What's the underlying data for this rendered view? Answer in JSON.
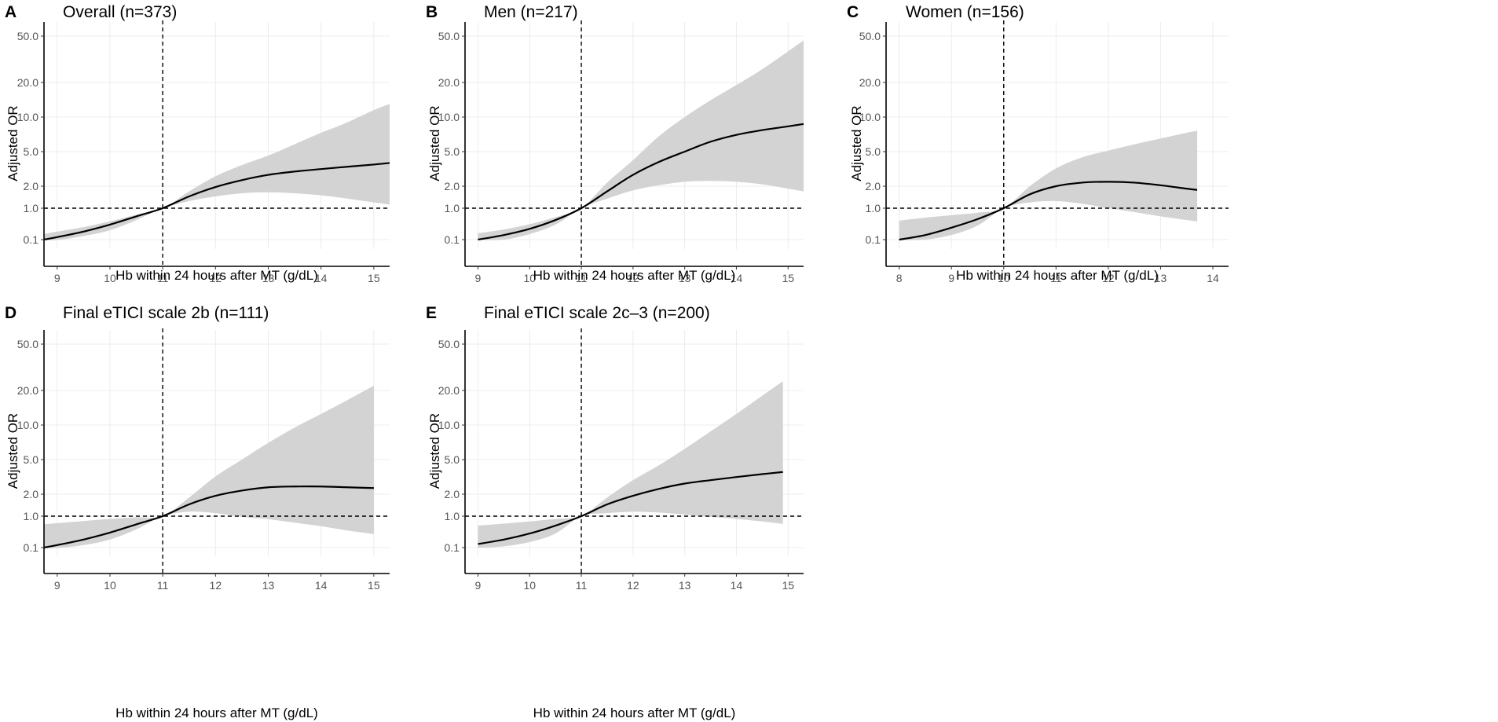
{
  "figure": {
    "y_axis_label": "Adjusted OR",
    "x_axis_label": "Hb within 24 hours after MT (g/dL)",
    "y_tick_labels": [
      "0.1",
      "1.0",
      "2.0",
      "5.0",
      "10.0",
      "20.0",
      "50.0"
    ]
  },
  "chart_data": [
    {
      "type": "line",
      "panel": "A",
      "title": "Overall (n=373)",
      "xlabel": "Hb within 24 hours after MT (g/dL)",
      "ylabel": "Adjusted OR",
      "xlim": [
        8.75,
        15.3
      ],
      "x_ticks": [
        9,
        10,
        11,
        12,
        13,
        14,
        15
      ],
      "ref_x": 11,
      "ref_y": 1.0,
      "curve": {
        "x": [
          8.75,
          9,
          9.5,
          10,
          10.5,
          11,
          11.5,
          12,
          12.5,
          13,
          13.5,
          14,
          14.5,
          15,
          15.3
        ],
        "y": [
          0.1,
          0.12,
          0.18,
          0.3,
          0.55,
          1.0,
          1.45,
          1.95,
          2.35,
          2.7,
          2.95,
          3.15,
          3.35,
          3.55,
          3.7
        ]
      },
      "ci_upper": {
        "x": [
          8.75,
          9,
          9.5,
          10,
          10.5,
          11,
          11.5,
          12,
          12.5,
          13,
          13.5,
          14,
          14.5,
          15,
          15.3
        ],
        "y": [
          0.15,
          0.18,
          0.25,
          0.38,
          0.62,
          1.0,
          1.7,
          2.6,
          3.5,
          4.5,
          5.8,
          7.3,
          9.0,
          11.5,
          13.0
        ]
      },
      "ci_lower": {
        "x": [
          8.75,
          9,
          9.5,
          10,
          10.5,
          11,
          11.5,
          12,
          12.5,
          13,
          13.5,
          14,
          14.5,
          15,
          15.3
        ],
        "y": [
          0.085,
          0.09,
          0.13,
          0.2,
          0.42,
          1.0,
          1.25,
          1.45,
          1.6,
          1.65,
          1.6,
          1.5,
          1.35,
          1.2,
          1.12
        ]
      }
    },
    {
      "type": "line",
      "panel": "B",
      "title": "Men (n=217)",
      "xlabel": "Hb within 24 hours after MT (g/dL)",
      "ylabel": "Adjusted OR",
      "xlim": [
        8.75,
        15.3
      ],
      "x_ticks": [
        9,
        10,
        11,
        12,
        13,
        14,
        15
      ],
      "ref_x": 11,
      "ref_y": 1.0,
      "curve": {
        "x": [
          9,
          9.5,
          10,
          10.5,
          11,
          11.5,
          12,
          12.5,
          13,
          13.5,
          14,
          14.5,
          15,
          15.3
        ],
        "y": [
          0.1,
          0.14,
          0.22,
          0.42,
          1.0,
          1.7,
          2.7,
          3.8,
          5.0,
          6.1,
          7.0,
          7.7,
          8.3,
          8.7
        ]
      },
      "ci_upper": {
        "x": [
          9,
          9.5,
          10,
          10.5,
          11,
          11.5,
          12,
          12.5,
          13,
          13.5,
          14,
          14.5,
          15,
          15.3
        ],
        "y": [
          0.16,
          0.21,
          0.31,
          0.52,
          1.0,
          2.2,
          4.0,
          6.8,
          10.0,
          14.0,
          19.0,
          26.0,
          37.0,
          46.0
        ]
      },
      "ci_lower": {
        "x": [
          9,
          9.5,
          10,
          10.5,
          11,
          11.5,
          12,
          12.5,
          13,
          13.5,
          14,
          14.5,
          15,
          15.3
        ],
        "y": [
          0.085,
          0.1,
          0.15,
          0.3,
          1.0,
          1.35,
          1.75,
          2.05,
          2.25,
          2.3,
          2.25,
          2.1,
          1.85,
          1.7
        ]
      }
    },
    {
      "type": "line",
      "panel": "C",
      "title": "Women (n=156)",
      "xlabel": "Hb within 24 hours after MT (g/dL)",
      "ylabel": "Adjusted OR",
      "xlim": [
        7.75,
        14.3
      ],
      "x_ticks": [
        8,
        9,
        10,
        11,
        12,
        13,
        14
      ],
      "ref_x": 10,
      "ref_y": 1.0,
      "curve": {
        "x": [
          8,
          8.5,
          9,
          9.5,
          10,
          10.5,
          11,
          11.5,
          12,
          12.5,
          13,
          13.5,
          13.7
        ],
        "y": [
          0.1,
          0.14,
          0.24,
          0.45,
          1.0,
          1.55,
          2.0,
          2.2,
          2.25,
          2.2,
          2.05,
          1.85,
          1.78
        ]
      },
      "ci_upper": {
        "x": [
          8,
          8.5,
          9,
          9.5,
          10,
          10.5,
          11,
          11.5,
          12,
          12.5,
          13,
          13.5,
          13.7
        ],
        "y": [
          0.4,
          0.5,
          0.6,
          0.72,
          1.0,
          2.0,
          3.2,
          4.3,
          5.1,
          5.8,
          6.5,
          7.3,
          7.6
        ]
      },
      "ci_lower": {
        "x": [
          8,
          8.5,
          9,
          9.5,
          10,
          10.5,
          11,
          11.5,
          12,
          12.5,
          13,
          13.5,
          13.7
        ],
        "y": [
          0.085,
          0.1,
          0.14,
          0.28,
          1.0,
          1.2,
          1.25,
          1.15,
          1.0,
          0.75,
          0.55,
          0.42,
          0.38
        ]
      }
    },
    {
      "type": "line",
      "panel": "D",
      "title": "Final eTICI scale 2b (n=111)",
      "xlabel": "Hb within 24 hours after MT (g/dL)",
      "ylabel": "Adjusted OR",
      "xlim": [
        8.75,
        15.3
      ],
      "x_ticks": [
        9,
        10,
        11,
        12,
        13,
        14,
        15
      ],
      "ref_x": 11,
      "ref_y": 1.0,
      "curve": {
        "x": [
          8.75,
          9,
          9.5,
          10,
          10.5,
          11,
          11.5,
          12,
          12.5,
          13,
          13.5,
          14,
          14.5,
          15
        ],
        "y": [
          0.1,
          0.12,
          0.18,
          0.3,
          0.55,
          1.0,
          1.45,
          1.9,
          2.2,
          2.4,
          2.45,
          2.45,
          2.4,
          2.35
        ]
      },
      "ci_upper": {
        "x": [
          8.75,
          9,
          9.5,
          10,
          10.5,
          11,
          11.5,
          12,
          12.5,
          13,
          13.5,
          14,
          14.5,
          15
        ],
        "y": [
          0.55,
          0.6,
          0.7,
          0.82,
          0.92,
          1.0,
          1.8,
          3.2,
          5.0,
          7.0,
          9.5,
          12.5,
          16.5,
          22.0
        ]
      },
      "ci_lower": {
        "x": [
          8.75,
          9,
          9.5,
          10,
          10.5,
          11,
          11.5,
          12,
          12.5,
          13,
          13.5,
          14,
          14.5,
          15
        ],
        "y": [
          0.085,
          0.09,
          0.12,
          0.18,
          0.38,
          1.0,
          1.15,
          1.1,
          0.95,
          0.8,
          0.62,
          0.48,
          0.35,
          0.27
        ]
      }
    },
    {
      "type": "line",
      "panel": "E",
      "title": "Final eTICI scale 2c–3 (n=200)",
      "xlabel": "Hb within 24 hours after MT (g/dL)",
      "ylabel": "Adjusted OR",
      "xlim": [
        8.75,
        15.3
      ],
      "x_ticks": [
        9,
        10,
        11,
        12,
        13,
        14,
        15
      ],
      "ref_x": 11,
      "ref_y": 1.0,
      "curve": {
        "x": [
          9,
          9.5,
          10,
          10.5,
          11,
          11.5,
          12,
          12.5,
          13,
          13.5,
          14,
          14.5,
          14.9
        ],
        "y": [
          0.13,
          0.18,
          0.28,
          0.5,
          1.0,
          1.45,
          1.9,
          2.3,
          2.65,
          2.9,
          3.15,
          3.4,
          3.6
        ]
      },
      "ci_upper": {
        "x": [
          9,
          9.5,
          10,
          10.5,
          11,
          11.5,
          12,
          12.5,
          13,
          13.5,
          14,
          14.5,
          14.9
        ],
        "y": [
          0.5,
          0.58,
          0.68,
          0.82,
          1.0,
          1.8,
          2.9,
          4.3,
          6.2,
          8.8,
          12.5,
          18.0,
          24.0
        ]
      },
      "ci_lower": {
        "x": [
          9,
          9.5,
          10,
          10.5,
          11,
          11.5,
          12,
          12.5,
          13,
          13.5,
          14,
          14.5,
          14.9
        ],
        "y": [
          0.09,
          0.11,
          0.15,
          0.28,
          1.0,
          1.1,
          1.15,
          1.12,
          1.05,
          0.95,
          0.82,
          0.68,
          0.57
        ]
      }
    }
  ]
}
